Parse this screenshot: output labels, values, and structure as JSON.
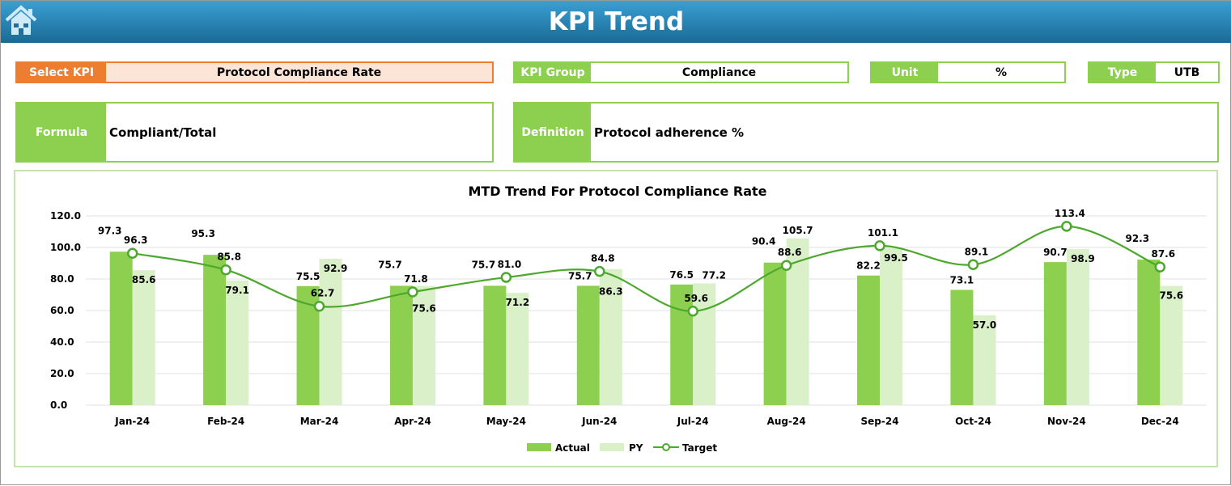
{
  "header": {
    "title": "KPI Trend",
    "home_icon": "home-icon"
  },
  "fields": {
    "select_kpi": {
      "label": "Select KPI",
      "value": "Protocol Compliance Rate"
    },
    "kpi_group": {
      "label": "KPI Group",
      "value": "Compliance"
    },
    "unit": {
      "label": "Unit",
      "value": "%"
    },
    "type": {
      "label": "Type",
      "value": "UTB"
    },
    "formula": {
      "label": "Formula",
      "value": "Compliant/Total"
    },
    "definition": {
      "label": "Definition",
      "value": "Protocol adherence %"
    }
  },
  "colors": {
    "actual": "#8dcf4f",
    "py": "#d9f0c9",
    "target": "#4ea72e",
    "select_kpi": "#ed7d31",
    "header": "#1f7aa8"
  },
  "chart_data": {
    "type": "bar",
    "title": "MTD Trend For Protocol Compliance Rate",
    "categories": [
      "Jan-24",
      "Feb-24",
      "Mar-24",
      "Apr-24",
      "May-24",
      "Jun-24",
      "Jul-24",
      "Aug-24",
      "Sep-24",
      "Oct-24",
      "Nov-24",
      "Dec-24"
    ],
    "ylim": [
      0,
      120
    ],
    "yticks": [
      "0.0",
      "20.0",
      "40.0",
      "60.0",
      "80.0",
      "100.0",
      "120.0"
    ],
    "grid": true,
    "legend_position": "bottom",
    "series": [
      {
        "name": "Actual",
        "type": "bar",
        "values": [
          97.3,
          95.3,
          75.5,
          75.7,
          75.7,
          75.7,
          76.5,
          90.4,
          82.2,
          73.1,
          90.7,
          92.3
        ]
      },
      {
        "name": "PY",
        "type": "bar",
        "values": [
          85.6,
          79.1,
          92.9,
          75.6,
          71.2,
          86.3,
          77.2,
          105.7,
          99.5,
          57.0,
          98.9,
          75.6
        ]
      },
      {
        "name": "Target",
        "type": "line",
        "values": [
          96.3,
          85.8,
          62.7,
          71.8,
          81.0,
          84.8,
          59.6,
          88.6,
          101.1,
          89.1,
          113.4,
          87.6
        ]
      }
    ]
  }
}
